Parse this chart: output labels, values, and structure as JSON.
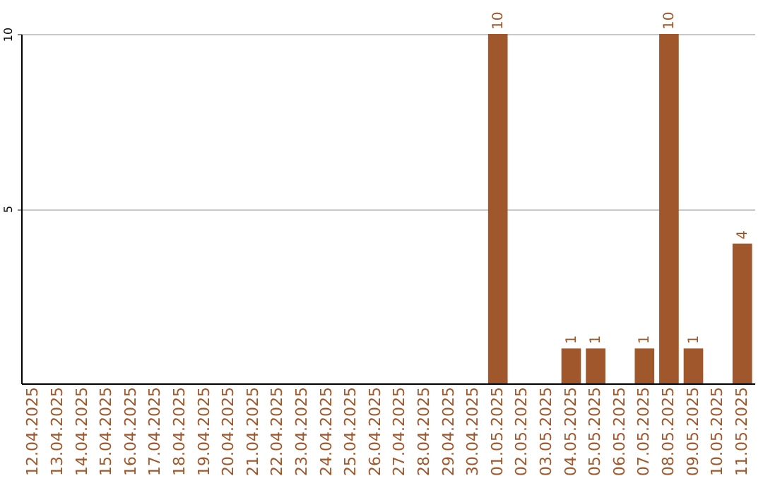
{
  "chart_data": {
    "type": "bar",
    "categories": [
      "12.04.2025",
      "13.04.2025",
      "14.04.2025",
      "15.04.2025",
      "16.04.2025",
      "17.04.2025",
      "18.04.2025",
      "19.04.2025",
      "20.04.2025",
      "21.04.2025",
      "22.04.2025",
      "23.04.2025",
      "24.04.2025",
      "25.04.2025",
      "26.04.2025",
      "27.04.2025",
      "28.04.2025",
      "29.04.2025",
      "30.04.2025",
      "01.05.2025",
      "02.05.2025",
      "03.05.2025",
      "04.05.2025",
      "05.05.2025",
      "06.05.2025",
      "07.05.2025",
      "08.05.2025",
      "09.05.2025",
      "10.05.2025",
      "11.05.2025"
    ],
    "values": [
      0,
      0,
      0,
      0,
      0,
      0,
      0,
      0,
      0,
      0,
      0,
      0,
      0,
      0,
      0,
      0,
      0,
      0,
      0,
      10,
      0,
      0,
      1,
      1,
      0,
      1,
      10,
      1,
      0,
      4
    ],
    "value_labels": [
      null,
      null,
      null,
      null,
      null,
      null,
      null,
      null,
      null,
      null,
      null,
      null,
      null,
      null,
      null,
      null,
      null,
      null,
      null,
      "10",
      null,
      null,
      "1",
      "1",
      null,
      "1",
      "10",
      "1",
      null,
      "4"
    ],
    "color": "#a0572b",
    "ylim": [
      0,
      10
    ],
    "yticks": [
      5,
      10
    ],
    "grid": "y"
  }
}
